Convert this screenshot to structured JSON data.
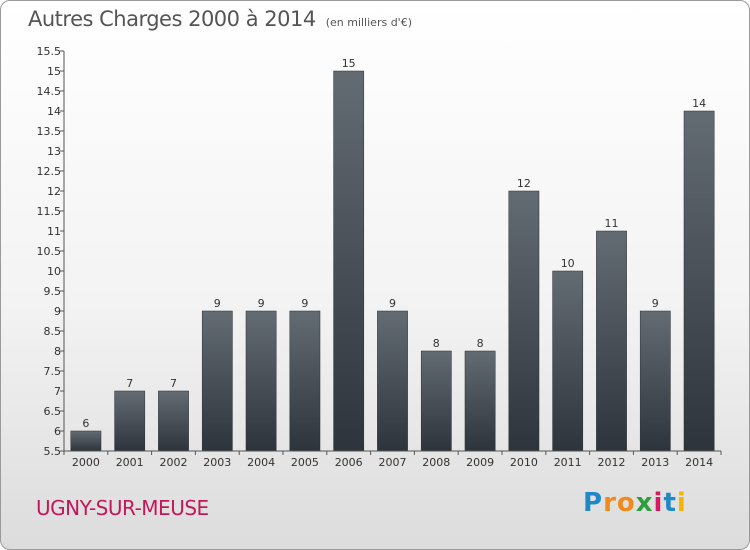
{
  "header": {
    "title": "Autres Charges 2000 à 2014",
    "subtitle": "(en milliers d'€)"
  },
  "footer": {
    "town": "UGNY-SUR-MEUSE",
    "logo": {
      "letters": [
        "P",
        "r",
        "o",
        "x",
        "i",
        "t",
        "i"
      ],
      "colors": [
        "#1e88c8",
        "#f08a1c",
        "#f08a1c",
        "#2e9e3c",
        "#d81b60",
        "#1e88c8",
        "#f4b400"
      ]
    }
  },
  "chart_data": {
    "type": "bar",
    "title": "Autres Charges 2000 à 2014",
    "subtitle": "(en milliers d'€)",
    "categories": [
      "2000",
      "2001",
      "2002",
      "2003",
      "2004",
      "2005",
      "2006",
      "2007",
      "2008",
      "2009",
      "2010",
      "2011",
      "2012",
      "2013",
      "2014"
    ],
    "values": [
      6,
      7,
      7,
      9,
      9,
      9,
      15,
      9,
      8,
      8,
      12,
      10,
      11,
      9,
      14
    ],
    "data_labels": [
      "6",
      "7",
      "7",
      "9",
      "9",
      "9",
      "15",
      "9",
      "8",
      "8",
      "12",
      "10",
      "11",
      "9",
      "14"
    ],
    "ylim": [
      5.5,
      15.5
    ],
    "yticks": [
      "5.5",
      "6",
      "6.5",
      "7",
      "7.5",
      "8",
      "8.5",
      "9",
      "9.5",
      "10",
      "10.5",
      "11",
      "11.5",
      "12",
      "12.5",
      "13",
      "13.5",
      "14",
      "14.5",
      "15",
      "15.5"
    ],
    "grid": false,
    "legend": "none",
    "bar_color_top": "#636b73",
    "bar_color_bottom": "#2e343b"
  }
}
